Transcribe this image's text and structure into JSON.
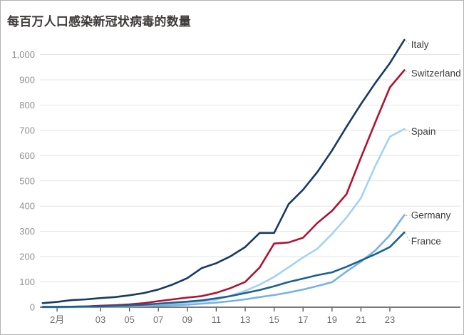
{
  "title": "每百万人口感染新冠状病毒的数量",
  "colors": {
    "title": "#3f3a3a",
    "axis": "#4d4d4d",
    "grid": "#e4e4e4",
    "x_tick_label": "#6e6e6e",
    "y_tick_label": "#8f8f8f",
    "series_label": "#3c3c3c",
    "leader": "#aaaaaa",
    "background": "#ffffff"
  },
  "chart_data": {
    "type": "line",
    "title": "每百万人口感染新冠状病毒的数量",
    "xlabel": "",
    "ylabel": "",
    "ylim": [
      0,
      1060
    ],
    "grid": "horizontal",
    "legend_position": "right-end-labels",
    "y_ticks": [
      0,
      100,
      200,
      300,
      400,
      500,
      600,
      700,
      800,
      900,
      1000
    ],
    "x": [
      "02-28",
      "02-29",
      "03-01",
      "03-02",
      "03-03",
      "03-04",
      "03-05",
      "03-06",
      "03-07",
      "03-08",
      "03-09",
      "03-10",
      "03-11",
      "03-12",
      "03-13",
      "03-14",
      "03-15",
      "03-16",
      "03-17",
      "03-18",
      "03-19",
      "03-20",
      "03-21",
      "03-22",
      "03-23",
      "03-24"
    ],
    "x_tick_labels": [
      {
        "index": 1,
        "label": "2月"
      },
      {
        "index": 4,
        "label": "03"
      },
      {
        "index": 6,
        "label": "05"
      },
      {
        "index": 8,
        "label": "07"
      },
      {
        "index": 10,
        "label": "09"
      },
      {
        "index": 12,
        "label": "11"
      },
      {
        "index": 14,
        "label": "13"
      },
      {
        "index": 16,
        "label": "15"
      },
      {
        "index": 18,
        "label": "17"
      },
      {
        "index": 20,
        "label": "19"
      },
      {
        "index": 22,
        "label": "21"
      },
      {
        "index": 24,
        "label": "23"
      }
    ],
    "series": [
      {
        "name": "Italy",
        "color": "#173a63",
        "values": [
          16,
          21,
          28,
          31,
          36,
          40,
          47,
          56,
          70,
          90,
          115,
          155,
          174,
          202,
          238,
          294,
          294,
          408,
          465,
          536,
          620,
          714,
          804,
          888,
          966,
          1058
        ]
      },
      {
        "name": "Switzerland",
        "color": "#b01331",
        "values": [
          1,
          1,
          2,
          3,
          6,
          8,
          11,
          16,
          24,
          31,
          38,
          44,
          57,
          76,
          100,
          157,
          252,
          256,
          275,
          334,
          381,
          447,
          592,
          733,
          870,
          938
        ]
      },
      {
        "name": "Spain",
        "color": "#a4d2f2",
        "values": [
          0,
          0,
          1,
          1,
          2,
          3,
          5,
          7,
          10,
          14,
          18,
          23,
          30,
          45,
          65,
          89,
          120,
          158,
          197,
          232,
          290,
          355,
          432,
          560,
          675,
          705
        ]
      },
      {
        "name": "Germany",
        "color": "#79b1e3",
        "values": [
          0,
          0,
          0,
          1,
          1,
          2,
          3,
          4,
          6,
          8,
          10,
          14,
          18,
          24,
          31,
          40,
          48,
          58,
          70,
          84,
          99,
          141,
          180,
          225,
          285,
          365
        ]
      },
      {
        "name": "France",
        "color": "#1b618f",
        "values": [
          1,
          1,
          2,
          3,
          3,
          5,
          7,
          10,
          14,
          18,
          22,
          27,
          35,
          44,
          56,
          68,
          83,
          100,
          113,
          127,
          138,
          160,
          185,
          210,
          238,
          296
        ]
      }
    ]
  }
}
